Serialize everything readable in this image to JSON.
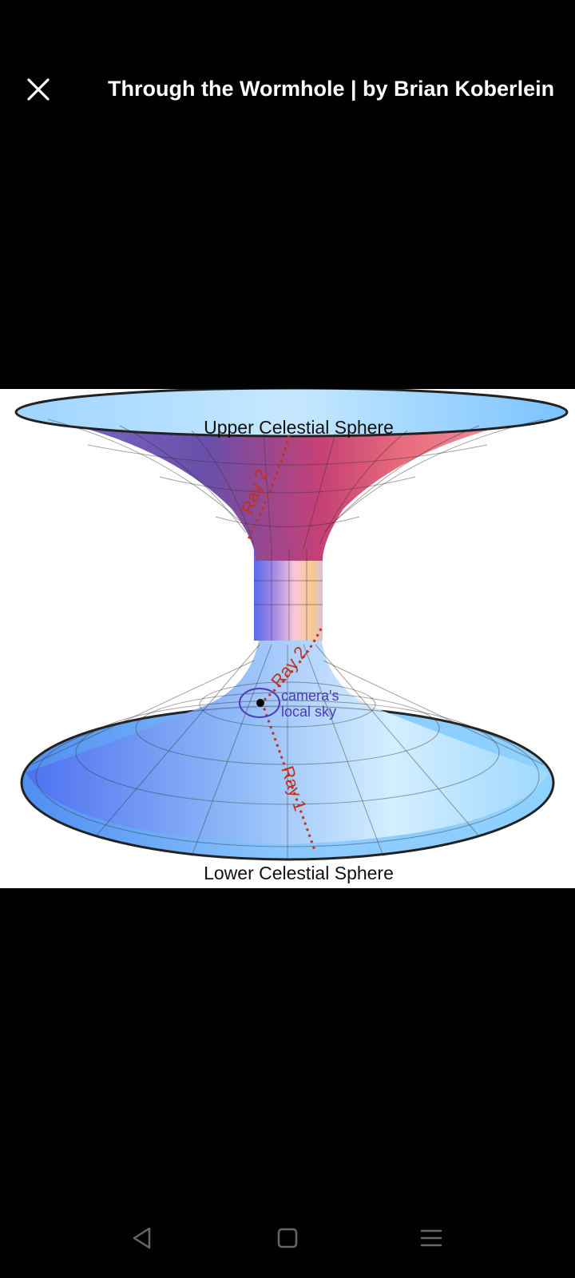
{
  "header": {
    "close_icon": "close-icon",
    "title": "Through the Wormhole | by Brian Koberlein"
  },
  "figure": {
    "upper_label": "Upper Celestial Sphere",
    "lower_label": "Lower Celestial Sphere",
    "ray2_upper": "Ray 2",
    "ray2_lower": "Ray 2",
    "ray1": "Ray 1",
    "camera_label_line1": "camera's",
    "camera_label_line2": "local sky",
    "colors": {
      "surface_blue": "#8fd0ff",
      "surface_purple": "#7a5bd6",
      "surface_pink": "#e4517a",
      "ray": "#c0311f",
      "camera": "#4b3bb8"
    }
  },
  "navbar": {
    "back_icon": "back-triangle-icon",
    "home_icon": "home-square-icon",
    "recents_icon": "menu-lines-icon"
  }
}
